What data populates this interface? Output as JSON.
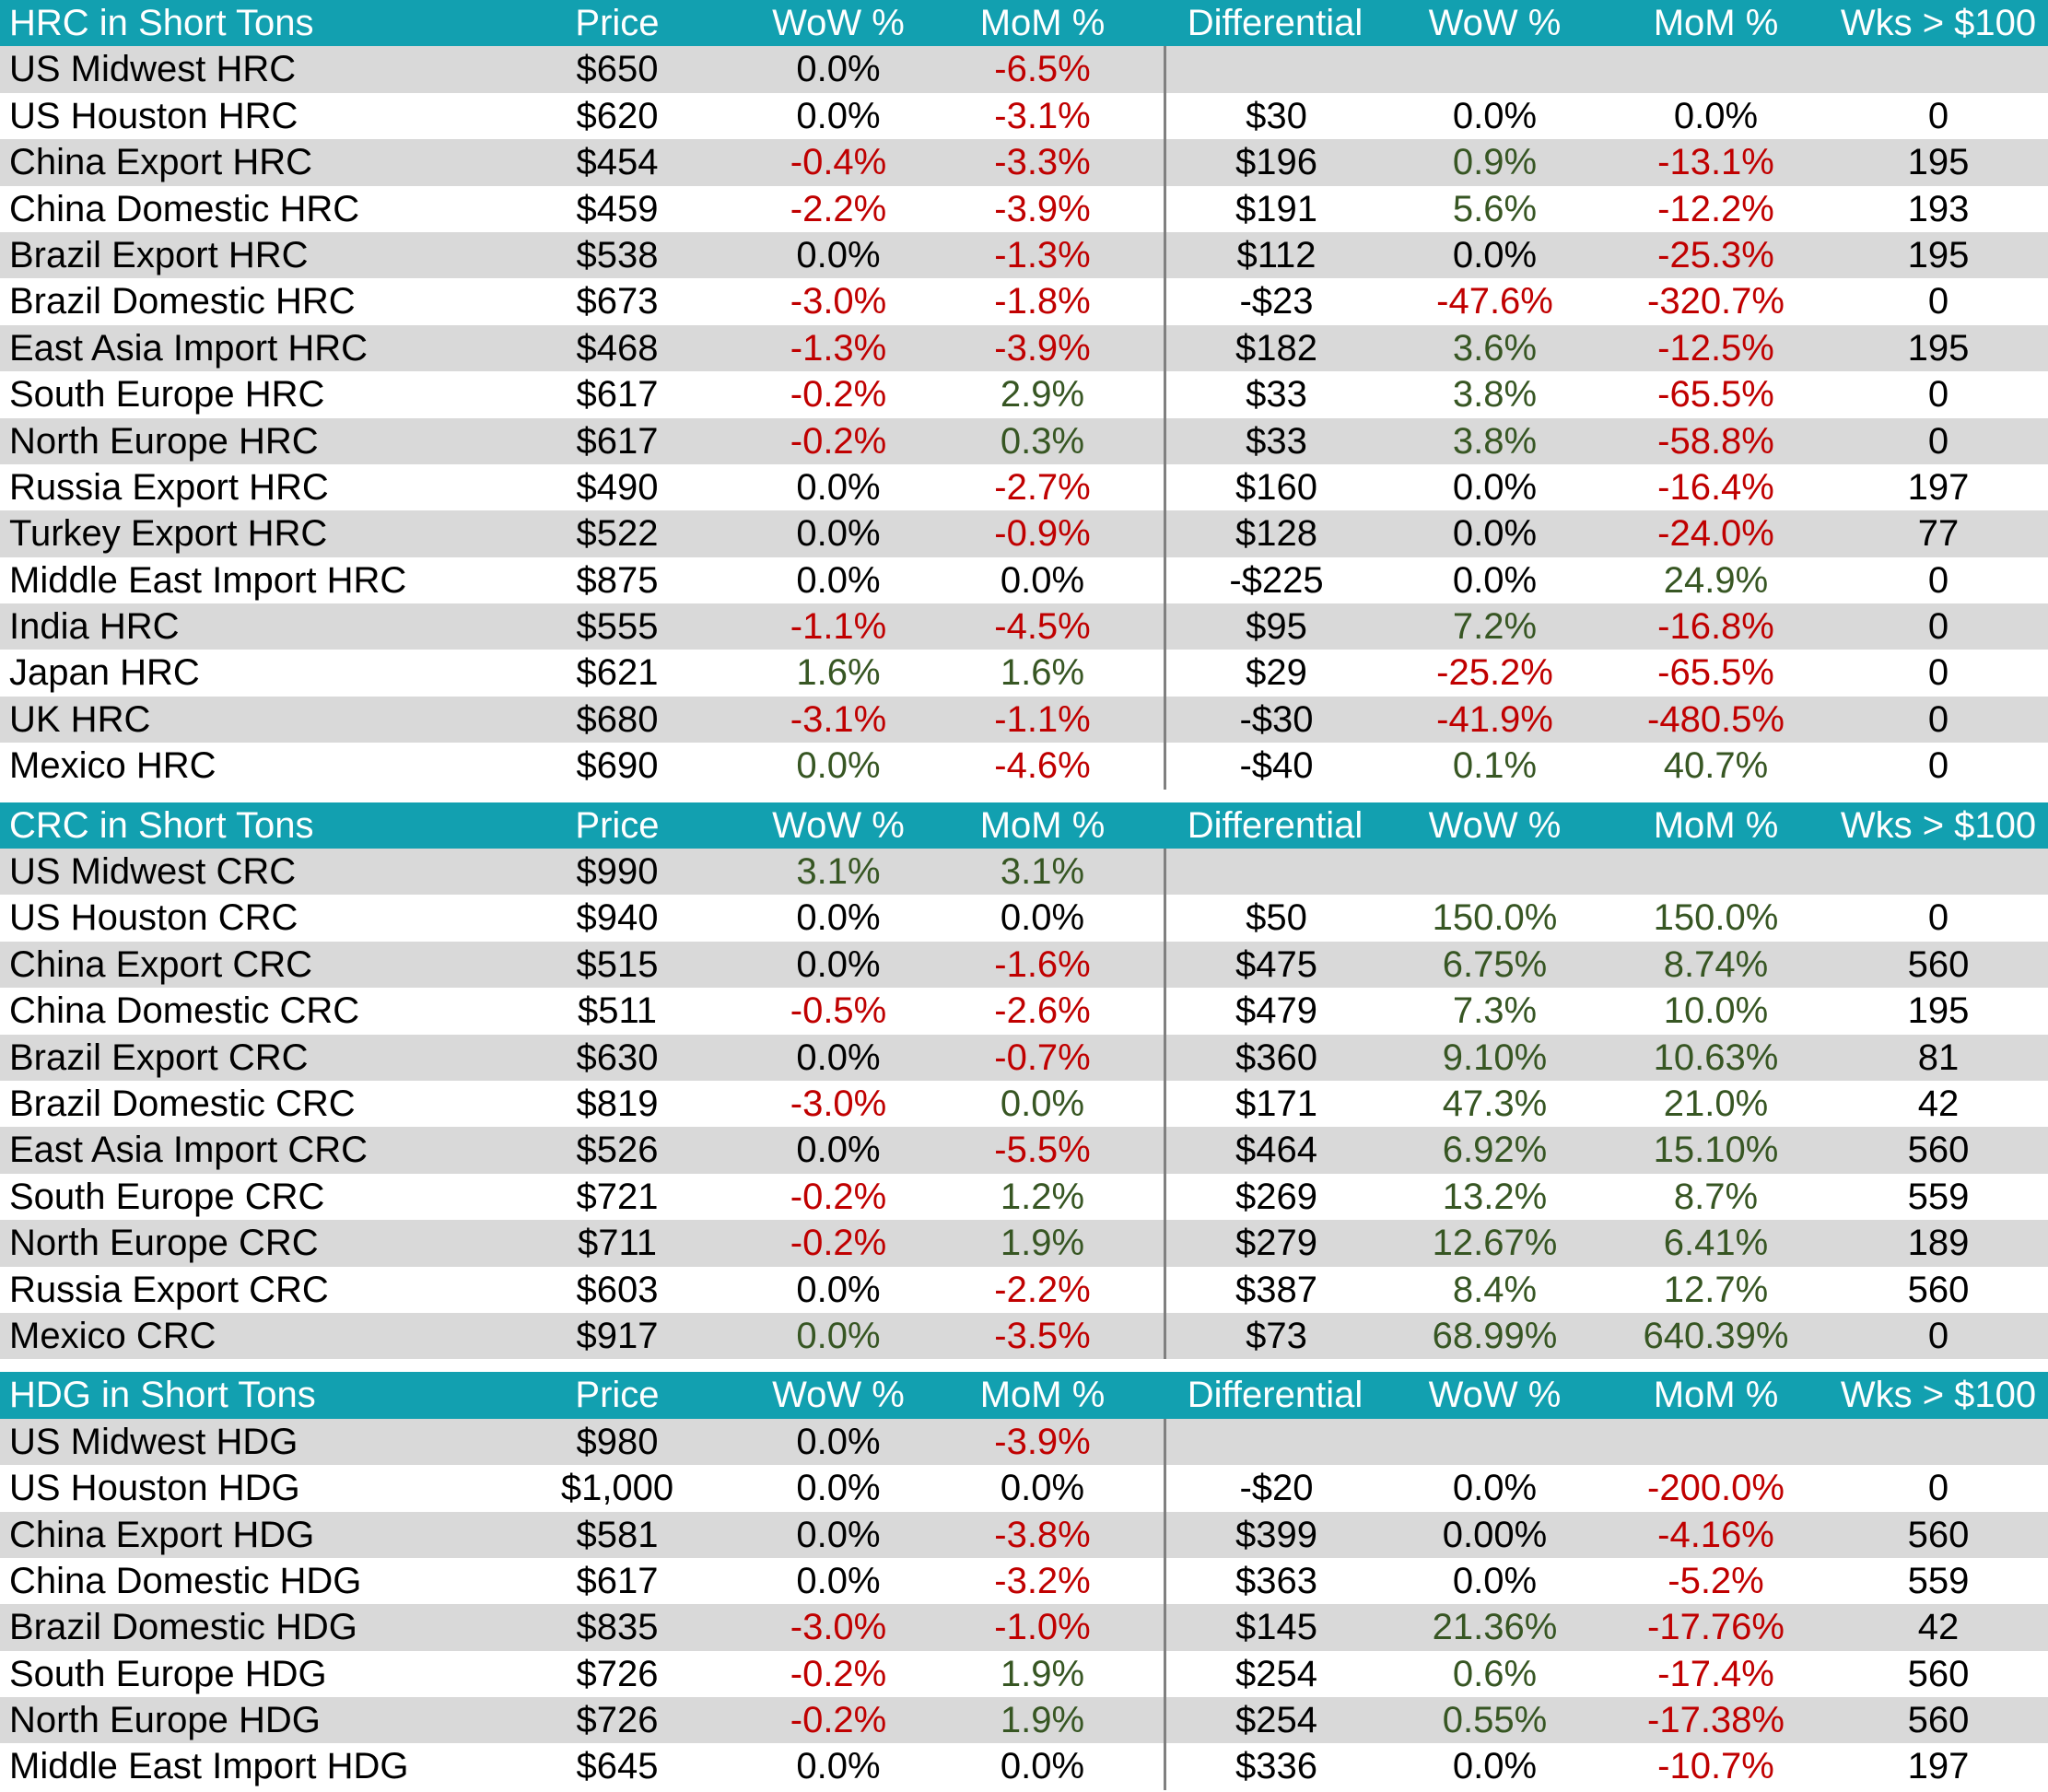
{
  "colors": {
    "teal": "#12A0B0",
    "stripe": "#D9D9D9",
    "red": "#C00000",
    "green": "#375623",
    "black": "#000000",
    "divider": "#808080",
    "header_text": "#FFFFFF"
  },
  "columns": [
    "Price",
    "WoW %",
    "MoM %",
    "Differential",
    "WoW %",
    "MoM %",
    "Wks > $100"
  ],
  "chart_data": [
    {
      "type": "table",
      "title": "HRC in Short Tons",
      "rows": [
        {
          "label": "US Midwest HRC",
          "price": "$650",
          "wow": "0.0%",
          "wow_c": "k",
          "mom": "-6.5%",
          "mom_c": "r",
          "diff": "",
          "dwow": "",
          "dwow_c": "k",
          "dmom": "",
          "dmom_c": "k",
          "wks": ""
        },
        {
          "label": "US Houston HRC",
          "price": "$620",
          "wow": "0.0%",
          "wow_c": "k",
          "mom": "-3.1%",
          "mom_c": "r",
          "diff": "$30",
          "dwow": "0.0%",
          "dwow_c": "k",
          "dmom": "0.0%",
          "dmom_c": "k",
          "wks": "0"
        },
        {
          "label": "China Export HRC",
          "price": "$454",
          "wow": "-0.4%",
          "wow_c": "r",
          "mom": "-3.3%",
          "mom_c": "r",
          "diff": "$196",
          "dwow": "0.9%",
          "dwow_c": "g",
          "dmom": "-13.1%",
          "dmom_c": "r",
          "wks": "195"
        },
        {
          "label": "China Domestic HRC",
          "price": "$459",
          "wow": "-2.2%",
          "wow_c": "r",
          "mom": "-3.9%",
          "mom_c": "r",
          "diff": "$191",
          "dwow": "5.6%",
          "dwow_c": "g",
          "dmom": "-12.2%",
          "dmom_c": "r",
          "wks": "193"
        },
        {
          "label": "Brazil Export HRC",
          "price": "$538",
          "wow": "0.0%",
          "wow_c": "k",
          "mom": "-1.3%",
          "mom_c": "r",
          "diff": "$112",
          "dwow": "0.0%",
          "dwow_c": "k",
          "dmom": "-25.3%",
          "dmom_c": "r",
          "wks": "195"
        },
        {
          "label": "Brazil Domestic HRC",
          "price": "$673",
          "wow": "-3.0%",
          "wow_c": "r",
          "mom": "-1.8%",
          "mom_c": "r",
          "diff": "-$23",
          "dwow": "-47.6%",
          "dwow_c": "r",
          "dmom": "-320.7%",
          "dmom_c": "r",
          "wks": "0"
        },
        {
          "label": "East Asia Import HRC",
          "price": "$468",
          "wow": "-1.3%",
          "wow_c": "r",
          "mom": "-3.9%",
          "mom_c": "r",
          "diff": "$182",
          "dwow": "3.6%",
          "dwow_c": "g",
          "dmom": "-12.5%",
          "dmom_c": "r",
          "wks": "195"
        },
        {
          "label": "South Europe HRC",
          "price": "$617",
          "wow": "-0.2%",
          "wow_c": "r",
          "mom": "2.9%",
          "mom_c": "g",
          "diff": "$33",
          "dwow": "3.8%",
          "dwow_c": "g",
          "dmom": "-65.5%",
          "dmom_c": "r",
          "wks": "0"
        },
        {
          "label": "North Europe HRC",
          "price": "$617",
          "wow": "-0.2%",
          "wow_c": "r",
          "mom": "0.3%",
          "mom_c": "g",
          "diff": "$33",
          "dwow": "3.8%",
          "dwow_c": "g",
          "dmom": "-58.8%",
          "dmom_c": "r",
          "wks": "0"
        },
        {
          "label": "Russia Export HRC",
          "price": "$490",
          "wow": "0.0%",
          "wow_c": "k",
          "mom": "-2.7%",
          "mom_c": "r",
          "diff": "$160",
          "dwow": "0.0%",
          "dwow_c": "k",
          "dmom": "-16.4%",
          "dmom_c": "r",
          "wks": "197"
        },
        {
          "label": "Turkey Export HRC",
          "price": "$522",
          "wow": "0.0%",
          "wow_c": "k",
          "mom": "-0.9%",
          "mom_c": "r",
          "diff": "$128",
          "dwow": "0.0%",
          "dwow_c": "k",
          "dmom": "-24.0%",
          "dmom_c": "r",
          "wks": "77"
        },
        {
          "label": "Middle East Import HRC",
          "price": "$875",
          "wow": "0.0%",
          "wow_c": "k",
          "mom": "0.0%",
          "mom_c": "k",
          "diff": "-$225",
          "dwow": "0.0%",
          "dwow_c": "k",
          "dmom": "24.9%",
          "dmom_c": "g",
          "wks": "0"
        },
        {
          "label": "India HRC",
          "price": "$555",
          "wow": "-1.1%",
          "wow_c": "r",
          "mom": "-4.5%",
          "mom_c": "r",
          "diff": "$95",
          "dwow": "7.2%",
          "dwow_c": "g",
          "dmom": "-16.8%",
          "dmom_c": "r",
          "wks": "0"
        },
        {
          "label": "Japan HRC",
          "price": "$621",
          "wow": "1.6%",
          "wow_c": "g",
          "mom": "1.6%",
          "mom_c": "g",
          "diff": "$29",
          "dwow": "-25.2%",
          "dwow_c": "r",
          "dmom": "-65.5%",
          "dmom_c": "r",
          "wks": "0"
        },
        {
          "label": "UK HRC",
          "price": "$680",
          "wow": "-3.1%",
          "wow_c": "r",
          "mom": "-1.1%",
          "mom_c": "r",
          "diff": "-$30",
          "dwow": "-41.9%",
          "dwow_c": "r",
          "dmom": "-480.5%",
          "dmom_c": "r",
          "wks": "0"
        },
        {
          "label": "Mexico HRC",
          "price": "$690",
          "wow": "0.0%",
          "wow_c": "g",
          "mom": "-4.6%",
          "mom_c": "r",
          "diff": "-$40",
          "dwow": "0.1%",
          "dwow_c": "g",
          "dmom": "40.7%",
          "dmom_c": "g",
          "wks": "0"
        }
      ]
    },
    {
      "type": "table",
      "title": "CRC in Short Tons",
      "rows": [
        {
          "label": "US Midwest CRC",
          "price": "$990",
          "wow": "3.1%",
          "wow_c": "g",
          "mom": "3.1%",
          "mom_c": "g",
          "diff": "",
          "dwow": "",
          "dwow_c": "k",
          "dmom": "",
          "dmom_c": "k",
          "wks": ""
        },
        {
          "label": "US Houston CRC",
          "price": "$940",
          "wow": "0.0%",
          "wow_c": "k",
          "mom": "0.0%",
          "mom_c": "k",
          "diff": "$50",
          "dwow": "150.0%",
          "dwow_c": "g",
          "dmom": "150.0%",
          "dmom_c": "g",
          "wks": "0"
        },
        {
          "label": "China Export CRC",
          "price": "$515",
          "wow": "0.0%",
          "wow_c": "k",
          "mom": "-1.6%",
          "mom_c": "r",
          "diff": "$475",
          "dwow": "6.75%",
          "dwow_c": "g",
          "dmom": "8.74%",
          "dmom_c": "g",
          "wks": "560"
        },
        {
          "label": "China Domestic CRC",
          "price": "$511",
          "wow": "-0.5%",
          "wow_c": "r",
          "mom": "-2.6%",
          "mom_c": "r",
          "diff": "$479",
          "dwow": "7.3%",
          "dwow_c": "g",
          "dmom": "10.0%",
          "dmom_c": "g",
          "wks": "195"
        },
        {
          "label": "Brazil Export CRC",
          "price": "$630",
          "wow": "0.0%",
          "wow_c": "k",
          "mom": "-0.7%",
          "mom_c": "r",
          "diff": "$360",
          "dwow": "9.10%",
          "dwow_c": "g",
          "dmom": "10.63%",
          "dmom_c": "g",
          "wks": "81"
        },
        {
          "label": "Brazil Domestic CRC",
          "price": "$819",
          "wow": "-3.0%",
          "wow_c": "r",
          "mom": "0.0%",
          "mom_c": "g",
          "diff": "$171",
          "dwow": "47.3%",
          "dwow_c": "g",
          "dmom": "21.0%",
          "dmom_c": "g",
          "wks": "42"
        },
        {
          "label": "East Asia Import CRC",
          "price": "$526",
          "wow": "0.0%",
          "wow_c": "k",
          "mom": "-5.5%",
          "mom_c": "r",
          "diff": "$464",
          "dwow": "6.92%",
          "dwow_c": "g",
          "dmom": "15.10%",
          "dmom_c": "g",
          "wks": "560"
        },
        {
          "label": "South Europe CRC",
          "price": "$721",
          "wow": "-0.2%",
          "wow_c": "r",
          "mom": "1.2%",
          "mom_c": "g",
          "diff": "$269",
          "dwow": "13.2%",
          "dwow_c": "g",
          "dmom": "8.7%",
          "dmom_c": "g",
          "wks": "559"
        },
        {
          "label": "North Europe CRC",
          "price": "$711",
          "wow": "-0.2%",
          "wow_c": "r",
          "mom": "1.9%",
          "mom_c": "g",
          "diff": "$279",
          "dwow": "12.67%",
          "dwow_c": "g",
          "dmom": "6.41%",
          "dmom_c": "g",
          "wks": "189"
        },
        {
          "label": "Russia Export CRC",
          "price": "$603",
          "wow": "0.0%",
          "wow_c": "k",
          "mom": "-2.2%",
          "mom_c": "r",
          "diff": "$387",
          "dwow": "8.4%",
          "dwow_c": "g",
          "dmom": "12.7%",
          "dmom_c": "g",
          "wks": "560"
        },
        {
          "label": "Mexico CRC",
          "price": "$917",
          "wow": "0.0%",
          "wow_c": "g",
          "mom": "-3.5%",
          "mom_c": "r",
          "diff": "$73",
          "dwow": "68.99%",
          "dwow_c": "g",
          "dmom": "640.39%",
          "dmom_c": "g",
          "wks": "0"
        }
      ]
    },
    {
      "type": "table",
      "title": "HDG in Short Tons",
      "rows": [
        {
          "label": "US Midwest HDG",
          "price": "$980",
          "wow": "0.0%",
          "wow_c": "k",
          "mom": "-3.9%",
          "mom_c": "r",
          "diff": "",
          "dwow": "",
          "dwow_c": "k",
          "dmom": "",
          "dmom_c": "k",
          "wks": ""
        },
        {
          "label": "US Houston HDG",
          "price": "$1,000",
          "wow": "0.0%",
          "wow_c": "k",
          "mom": "0.0%",
          "mom_c": "k",
          "diff": "-$20",
          "dwow": "0.0%",
          "dwow_c": "k",
          "dmom": "-200.0%",
          "dmom_c": "r",
          "wks": "0"
        },
        {
          "label": "China Export HDG",
          "price": "$581",
          "wow": "0.0%",
          "wow_c": "k",
          "mom": "-3.8%",
          "mom_c": "r",
          "diff": "$399",
          "dwow": "0.00%",
          "dwow_c": "k",
          "dmom": "-4.16%",
          "dmom_c": "r",
          "wks": "560"
        },
        {
          "label": "China Domestic HDG",
          "price": "$617",
          "wow": "0.0%",
          "wow_c": "k",
          "mom": "-3.2%",
          "mom_c": "r",
          "diff": "$363",
          "dwow": "0.0%",
          "dwow_c": "k",
          "dmom": "-5.2%",
          "dmom_c": "r",
          "wks": "559"
        },
        {
          "label": "Brazil Domestic HDG",
          "price": "$835",
          "wow": "-3.0%",
          "wow_c": "r",
          "mom": "-1.0%",
          "mom_c": "r",
          "diff": "$145",
          "dwow": "21.36%",
          "dwow_c": "g",
          "dmom": "-17.76%",
          "dmom_c": "r",
          "wks": "42"
        },
        {
          "label": "South Europe HDG",
          "price": "$726",
          "wow": "-0.2%",
          "wow_c": "r",
          "mom": "1.9%",
          "mom_c": "g",
          "diff": "$254",
          "dwow": "0.6%",
          "dwow_c": "g",
          "dmom": "-17.4%",
          "dmom_c": "r",
          "wks": "560"
        },
        {
          "label": "North Europe HDG",
          "price": "$726",
          "wow": "-0.2%",
          "wow_c": "r",
          "mom": "1.9%",
          "mom_c": "g",
          "diff": "$254",
          "dwow": "0.55%",
          "dwow_c": "g",
          "dmom": "-17.38%",
          "dmom_c": "r",
          "wks": "560"
        },
        {
          "label": "Middle East Import HDG",
          "price": "$645",
          "wow": "0.0%",
          "wow_c": "k",
          "mom": "0.0%",
          "mom_c": "k",
          "diff": "$336",
          "dwow": "0.0%",
          "dwow_c": "k",
          "dmom": "-10.7%",
          "dmom_c": "r",
          "wks": "197"
        }
      ]
    }
  ]
}
